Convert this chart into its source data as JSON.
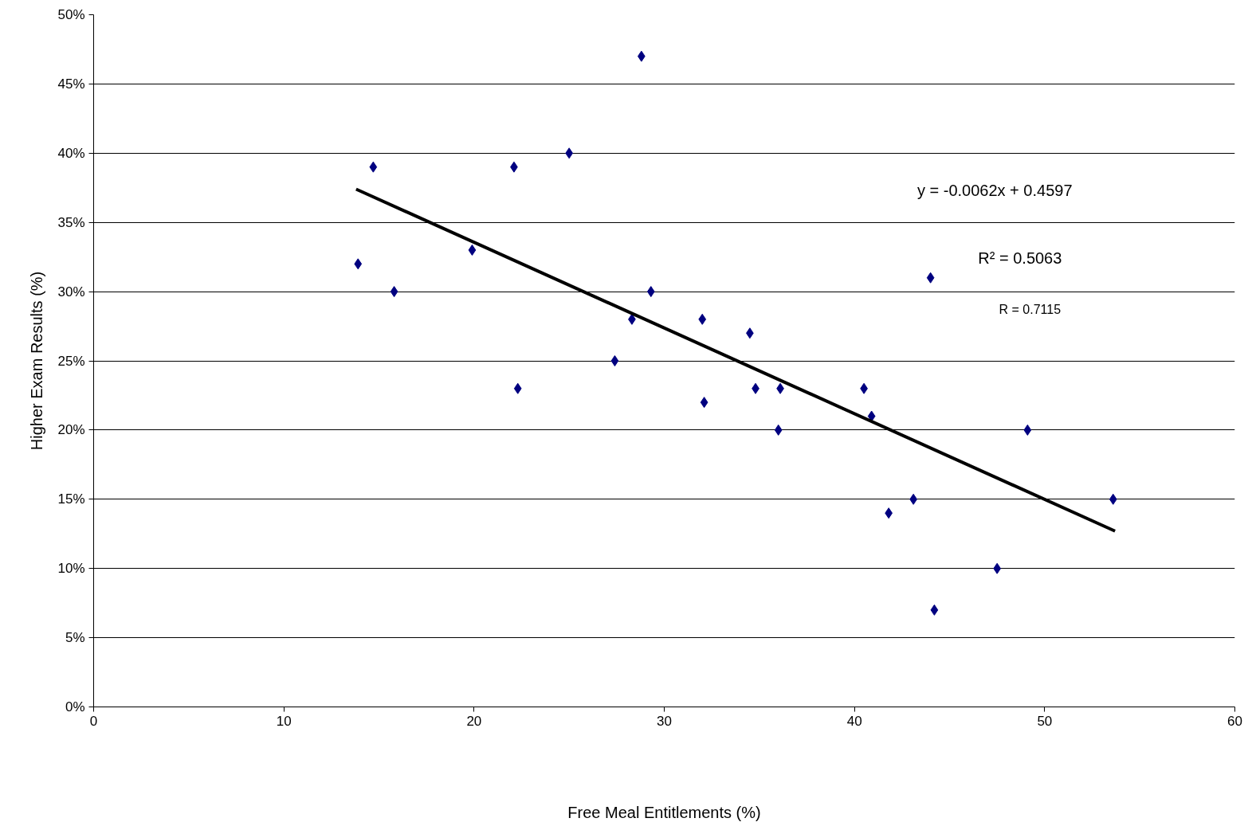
{
  "chart_data": {
    "type": "scatter",
    "xlabel": "Free Meal Entitlements (%)",
    "ylabel": "Higher Exam Results (%)",
    "xlim": [
      0,
      60
    ],
    "xticks": [
      0,
      10,
      20,
      30,
      40,
      50,
      60
    ],
    "ylim": [
      0,
      50
    ],
    "yticks": [
      {
        "value": 0,
        "label": "0%"
      },
      {
        "value": 5,
        "label": "5%"
      },
      {
        "value": 10,
        "label": "10%"
      },
      {
        "value": 15,
        "label": "15%"
      },
      {
        "value": 20,
        "label": "20%"
      },
      {
        "value": 25,
        "label": "25%"
      },
      {
        "value": 30,
        "label": "30%"
      },
      {
        "value": 35,
        "label": "35%"
      },
      {
        "value": 40,
        "label": "40%"
      },
      {
        "value": 45,
        "label": "45%"
      },
      {
        "value": 50,
        "label": "50%"
      }
    ],
    "grid": "y",
    "series": [
      {
        "marker": "diamond",
        "color": "#000080",
        "x": [
          13.9,
          14.7,
          15.8,
          19.9,
          22.1,
          22.3,
          25.0,
          27.4,
          28.3,
          28.8,
          29.3,
          32.0,
          32.1,
          34.5,
          34.8,
          36.0,
          36.1,
          40.5,
          40.9,
          41.8,
          43.1,
          44.0,
          44.2,
          47.5,
          49.1,
          53.6
        ],
        "values": [
          32,
          39,
          30,
          33,
          39,
          23,
          40,
          25,
          28,
          47,
          30,
          28,
          22,
          27,
          23,
          20,
          23,
          23,
          21,
          14,
          15,
          31,
          7,
          10,
          20,
          15
        ]
      },
      {
        "type": "line",
        "color": "#000000",
        "x": [
          13.8,
          53.7
        ],
        "values": [
          37.4,
          12.7
        ]
      }
    ],
    "annotations": [
      "y = -0.0062x + 0.4597",
      "R² = 0.5063",
      "R = 0.7115"
    ]
  }
}
